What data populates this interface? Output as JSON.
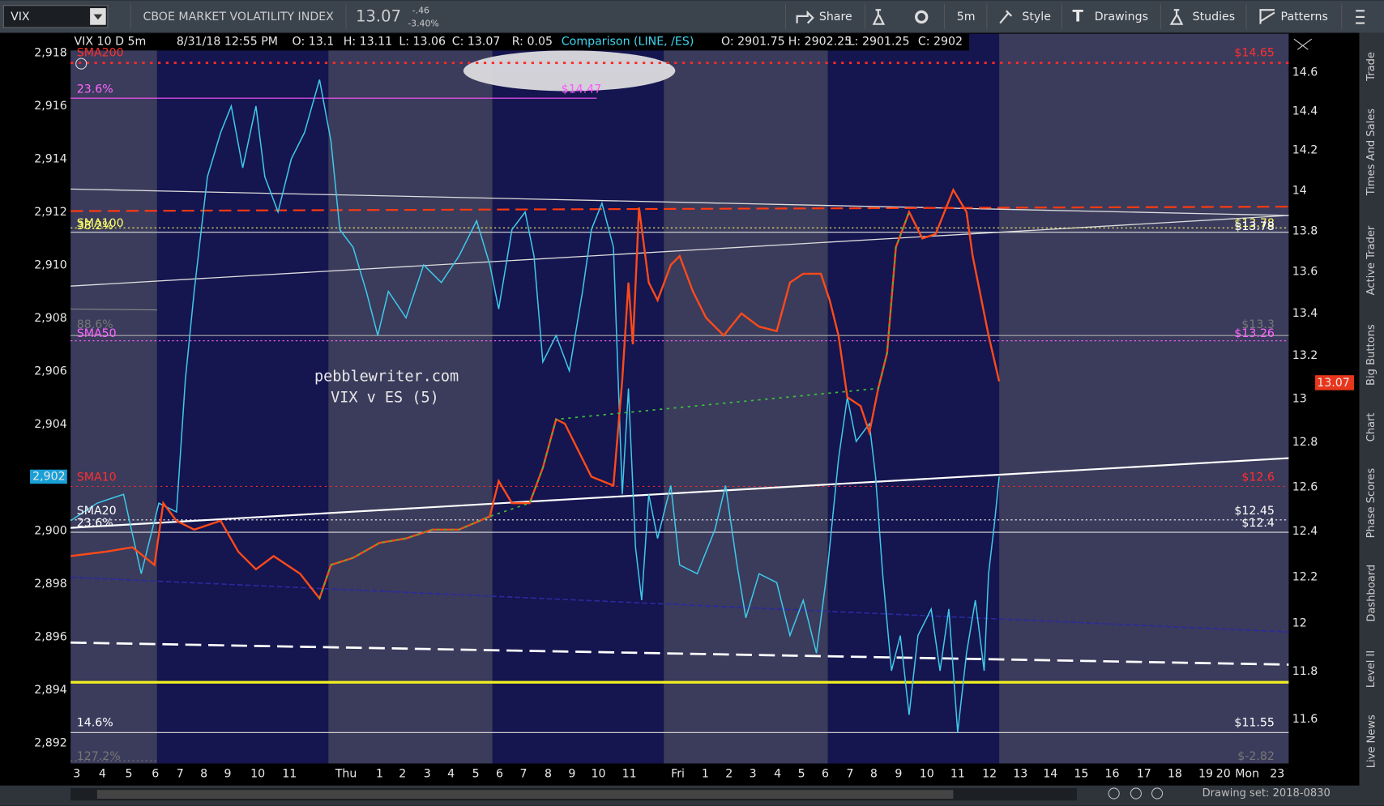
{
  "toolbar": {
    "symbol": "VIX",
    "description": "CBOE MARKET VOLATILITY INDEX",
    "last": "13.07",
    "change": "-.46",
    "change_pct": "-3.40%",
    "share": "Share",
    "interval": "5m",
    "style": "Style",
    "drawings": "Drawings",
    "studies": "Studies",
    "patterns": "Patterns"
  },
  "info_bar": {
    "chart_spec": "VIX 10 D 5m",
    "time": "8/31/18 12:55 PM",
    "open": "O: 13.1",
    "high": "H: 13.11",
    "low": "L: 13.06",
    "close": "C: 13.07",
    "range": "R: 0.05",
    "comparison": "Comparison (LINE, /ES)",
    "cmp_open": "O: 2901.75",
    "cmp_high": "H: 2902.25",
    "cmp_low": "L: 2901.25",
    "cmp_close": "C: 2902"
  },
  "left_axis": {
    "ticks": [
      "2,918",
      "2,916",
      "2,914",
      "2,912",
      "2,910",
      "2,908",
      "2,906",
      "2,904",
      "2,902",
      "2,900",
      "2,898",
      "2,896",
      "2,894",
      "2,892"
    ],
    "current": "2,902"
  },
  "right_axis": {
    "ticks": [
      "14.6",
      "14.4",
      "14.2",
      "14",
      "13.8",
      "13.6",
      "13.4",
      "13.2",
      "13",
      "12.8",
      "12.6",
      "12.4",
      "12.2",
      "12",
      "11.8",
      "11.6"
    ],
    "current": "13.07"
  },
  "time_axis": {
    "ticks": [
      "3",
      "4",
      "5",
      "6",
      "7",
      "8",
      "9",
      "10",
      "11",
      "Thu",
      "1",
      "2",
      "3",
      "4",
      "5",
      "6",
      "7",
      "8",
      "9",
      "10",
      "11",
      "Fri",
      "1",
      "2",
      "3",
      "4",
      "5",
      "6",
      "7",
      "8",
      "9",
      "10",
      "11",
      "12",
      "13",
      "14",
      "15",
      "16",
      "17",
      "18",
      "19",
      "20",
      "Mon",
      "23"
    ]
  },
  "levels_left": [
    "SMA200",
    "23.6%",
    "SMA100",
    "38.2%",
    "88.6%",
    "SMA50",
    "SMA10",
    "SMA20",
    "23.6%",
    "14.6%",
    "127.2%"
  ],
  "levels_right": [
    "$14.65",
    "$13.78",
    "$13.78",
    "$13.3",
    "$13.26",
    "$12.6",
    "$12.45",
    "$12.4",
    "$11.55",
    "$-2.82"
  ],
  "fib_label": "$14.47",
  "watermark": {
    "site": "pebblewriter.com",
    "caption": "VIX v ES (5)"
  },
  "sidebar": [
    "Trade",
    "Times And Sales",
    "Active Trader",
    "Big Buttons",
    "Chart",
    "Phase Scores",
    "Dashboard",
    "Level II",
    "Live News"
  ],
  "footer": {
    "drawing_set": "Drawing set: 2018-0830"
  }
}
